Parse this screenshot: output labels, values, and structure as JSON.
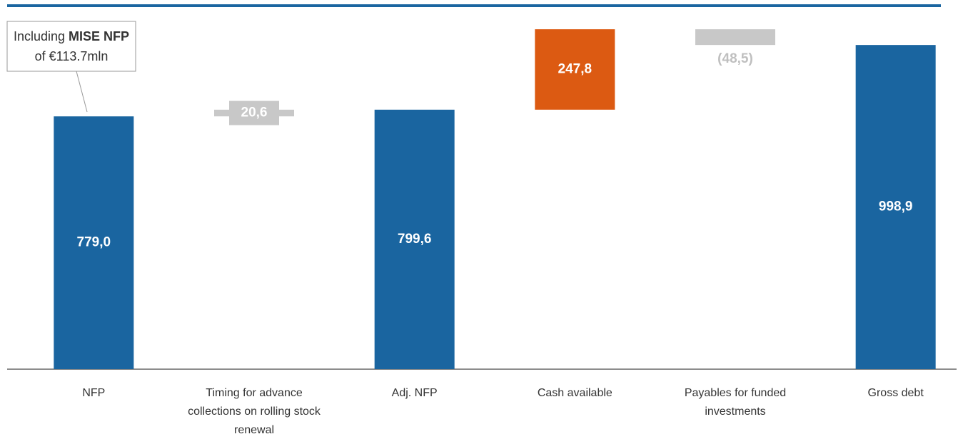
{
  "chart_data": {
    "type": "waterfall",
    "categories": [
      "NFP",
      "Timing for advance collections on rolling stock renewal",
      "Adj. NFP",
      "Cash available",
      "Payables for funded investments",
      "Gross debt"
    ],
    "values": [
      779.0,
      20.6,
      799.6,
      247.8,
      -48.5,
      998.9
    ],
    "value_labels": [
      "779,0",
      "20,6",
      "799,6",
      "247,8",
      "(48,5)",
      "998,9"
    ],
    "measure": [
      "absolute",
      "relative",
      "absolute",
      "relative",
      "relative",
      "absolute"
    ],
    "colors": [
      "#1a65a0",
      "#c8c8c8",
      "#1a65a0",
      "#dc5a12",
      "#c8c8c8",
      "#1a65a0"
    ],
    "ylim": [
      0,
      1120
    ],
    "annotation": {
      "text": [
        "Including ",
        "MISE NFP",
        "of €113.7mln"
      ]
    }
  }
}
